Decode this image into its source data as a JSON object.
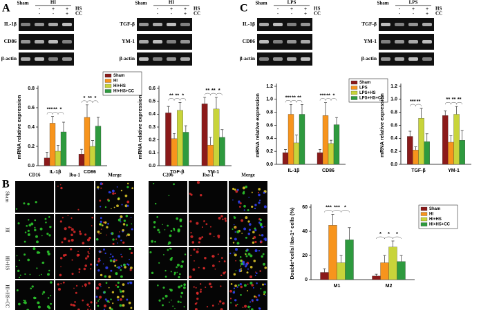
{
  "panel_labels": [
    "A",
    "B",
    "C"
  ],
  "gels": [
    {
      "group_labels": [
        "Sham",
        "HI"
      ],
      "hs_signs": [
        "-",
        "+",
        "+"
      ],
      "hs_label": "HS",
      "cc_signs": [
        "-",
        "-",
        "+"
      ],
      "cc_label": "CC",
      "rows": [
        "IL-1β",
        "CD86",
        "β-actin"
      ]
    },
    {
      "group_labels": [
        "Sham",
        "HI"
      ],
      "hs_signs": [
        "-",
        "+",
        "+"
      ],
      "hs_label": "HS",
      "cc_signs": [
        "-",
        "-",
        "+"
      ],
      "cc_label": "CC",
      "rows": [
        "TGF-β",
        "YM-1",
        "β-actin"
      ]
    },
    {
      "group_labels": [
        "Sham",
        "LPS"
      ],
      "hs_signs": [
        "-",
        "+",
        "+"
      ],
      "hs_label": "HS",
      "cc_signs": [
        "-",
        "-",
        "+"
      ],
      "cc_label": "CC",
      "rows": [
        "IL-1β",
        "CD86",
        "β-actin"
      ]
    },
    {
      "group_labels": [
        "Sham",
        "LPS"
      ],
      "hs_signs": [
        "-",
        "+",
        "+"
      ],
      "hs_label": "HS",
      "cc_signs": [
        "-",
        "-",
        "+"
      ],
      "cc_label": "CC",
      "rows": [
        "TGF-β",
        "YM-1",
        "β-actin"
      ]
    }
  ],
  "micrographs": {
    "row_labels": [
      "Sham",
      "HI",
      "HI+HS",
      "HI+HS+CC"
    ],
    "groups": [
      {
        "columns": [
          "CD16",
          "Iba-1",
          "Merge"
        ]
      },
      {
        "columns": [
          "C206",
          "Iba-1",
          "Merge"
        ]
      }
    ]
  },
  "chart_data": [
    {
      "type": "bar",
      "ylabel": "mRNA relative expression",
      "categories": [
        "IL-1β",
        "CD86"
      ],
      "ylim": [
        0,
        0.8
      ],
      "yticks": [
        {
          "value": 0,
          "label": "0.0"
        },
        0.2,
        0.4,
        0.6,
        0.8
      ],
      "legend": "right",
      "series": [
        {
          "name": "Sham",
          "color": "#8b1a1a",
          "values": [
            0.08,
            0.12
          ],
          "errors": [
            0.06,
            0.05
          ]
        },
        {
          "name": "HI",
          "color": "#f7941d",
          "values": [
            0.44,
            0.5
          ],
          "errors": [
            0.07,
            0.13
          ]
        },
        {
          "name": "HI+HS",
          "color": "#c8d43a",
          "values": [
            0.15,
            0.2
          ],
          "errors": [
            0.06,
            0.06
          ]
        },
        {
          "name": "HI+HS+CC",
          "color": "#2e9a3e",
          "values": [
            0.35,
            0.41
          ],
          "errors": [
            0.1,
            0.09
          ]
        }
      ],
      "significance": [
        [
          "***",
          "**",
          "*"
        ],
        [
          "*",
          "**",
          "*"
        ]
      ]
    },
    {
      "type": "bar",
      "ylabel": "mRNA relative expression",
      "categories": [
        "TGF-β",
        "YM-1"
      ],
      "ylim": [
        0,
        0.6
      ],
      "yticks": [
        {
          "value": 0,
          "label": "0.0"
        },
        0.1,
        0.2,
        0.3,
        0.4,
        0.5,
        0.6
      ],
      "series": [
        {
          "color": "#8b1a1a",
          "values": [
            0.41,
            0.48
          ],
          "errors": [
            0.05,
            0.05
          ]
        },
        {
          "color": "#f7941d",
          "values": [
            0.21,
            0.16
          ],
          "errors": [
            0.04,
            0.06
          ]
        },
        {
          "color": "#c8d43a",
          "values": [
            0.43,
            0.44
          ],
          "errors": [
            0.06,
            0.09
          ]
        },
        {
          "color": "#2e9a3e",
          "values": [
            0.26,
            0.22
          ],
          "errors": [
            0.05,
            0.06
          ]
        }
      ],
      "significance": [
        [
          "**",
          "**",
          "*"
        ],
        [
          "**",
          "**",
          "*"
        ]
      ]
    },
    {
      "type": "bar",
      "ylabel": "mRNA relative expression",
      "categories": [
        "IL-1β",
        "CD86"
      ],
      "ylim": [
        0,
        1.2
      ],
      "yticks": [
        {
          "value": 0,
          "label": "0.0"
        },
        0.2,
        0.4,
        0.6,
        0.8,
        {
          "value": 1,
          "label": "1.0"
        },
        1.2
      ],
      "legend": "right",
      "series": [
        {
          "name": "Sham",
          "color": "#8b1a1a",
          "values": [
            0.18,
            0.18
          ],
          "errors": [
            0.05,
            0.05
          ]
        },
        {
          "name": "LPS",
          "color": "#f7941d",
          "values": [
            0.77,
            0.75
          ],
          "errors": [
            0.15,
            0.2
          ]
        },
        {
          "name": "LPS+HS",
          "color": "#c8d43a",
          "values": [
            0.33,
            0.32
          ],
          "errors": [
            0.12,
            0.05
          ]
        },
        {
          "name": "LPS+HS+CC",
          "color": "#2e9a3e",
          "values": [
            0.77,
            0.61
          ],
          "errors": [
            0.15,
            0.11
          ]
        }
      ],
      "significance": [
        [
          "***",
          "**",
          "**"
        ],
        [
          "***",
          "**",
          "*"
        ]
      ]
    },
    {
      "type": "bar",
      "ylabel": "mRNA relative expression",
      "categories": [
        "TGF-β",
        "YM-1"
      ],
      "ylim": [
        0,
        1.2
      ],
      "yticks": [
        {
          "value": 0,
          "label": "0.0"
        },
        0.2,
        0.4,
        0.6,
        0.8,
        {
          "value": 1,
          "label": "1.0"
        },
        1.2
      ],
      "series": [
        {
          "color": "#8b1a1a",
          "values": [
            0.43,
            0.75
          ],
          "errors": [
            0.08,
            0.07
          ]
        },
        {
          "color": "#f7941d",
          "values": [
            0.22,
            0.34
          ],
          "errors": [
            0.05,
            0.1
          ]
        },
        {
          "color": "#c8d43a",
          "values": [
            0.71,
            0.77
          ],
          "errors": [
            0.15,
            0.12
          ]
        },
        {
          "color": "#2e9a3e",
          "values": [
            0.35,
            0.37
          ],
          "errors": [
            0.12,
            0.15
          ]
        }
      ],
      "significance": [
        [
          "***",
          "**"
        ],
        [
          "**",
          "**",
          "**"
        ]
      ]
    },
    {
      "type": "bar",
      "ylabel": "Double⁺cells/ Iba-1⁺ cells (%)",
      "categories": [
        "M1",
        "M2"
      ],
      "ylim": [
        0,
        60
      ],
      "yticks": [
        0,
        20,
        40,
        60
      ],
      "legend": "right",
      "series": [
        {
          "name": "Sham",
          "color": "#8b1a1a",
          "values": [
            6,
            3
          ],
          "errors": [
            3,
            1.5
          ]
        },
        {
          "name": "HI",
          "color": "#f7941d",
          "values": [
            45,
            14
          ],
          "errors": [
            9,
            6
          ]
        },
        {
          "name": "HI+HS",
          "color": "#c8d43a",
          "values": [
            14,
            27
          ],
          "errors": [
            6,
            5
          ]
        },
        {
          "name": "HI+HS+CC",
          "color": "#2e9a3e",
          "values": [
            33,
            15
          ],
          "errors": [
            10,
            5
          ]
        }
      ],
      "significance": [
        [
          "***",
          "***",
          "*"
        ],
        [
          "*",
          "*",
          "*"
        ]
      ]
    }
  ]
}
